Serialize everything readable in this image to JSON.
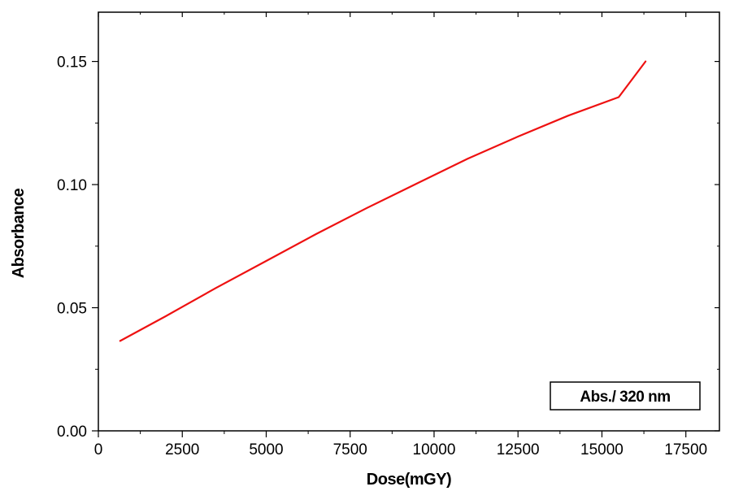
{
  "chart_data": {
    "type": "line",
    "title": "",
    "xlabel": "Dose(mGY)",
    "ylabel": "Absorbance",
    "xlim": [
      0,
      18500
    ],
    "ylim": [
      0,
      0.17
    ],
    "x_ticks": [
      0,
      2500,
      5000,
      7500,
      10000,
      12500,
      15000,
      17500
    ],
    "x_tick_labels": [
      "0",
      "2500",
      "5000",
      "7500",
      "10000",
      "12500",
      "15000",
      "17500"
    ],
    "y_ticks": [
      0.0,
      0.05,
      0.1,
      0.15
    ],
    "y_tick_labels": [
      "0.00",
      "0.05",
      "0.10",
      "0.15"
    ],
    "grid": false,
    "legend_position": "bottom-right",
    "series": [
      {
        "name": "Abs./ 320 nm",
        "color": "#ee1111",
        "x": [
          650,
          2000,
          3500,
          5000,
          6500,
          8000,
          9500,
          11000,
          12500,
          14000,
          15500,
          16300
        ],
        "y": [
          0.0365,
          0.0465,
          0.058,
          0.069,
          0.08,
          0.0905,
          0.1005,
          0.1105,
          0.1195,
          0.128,
          0.1355,
          0.15
        ]
      }
    ]
  }
}
